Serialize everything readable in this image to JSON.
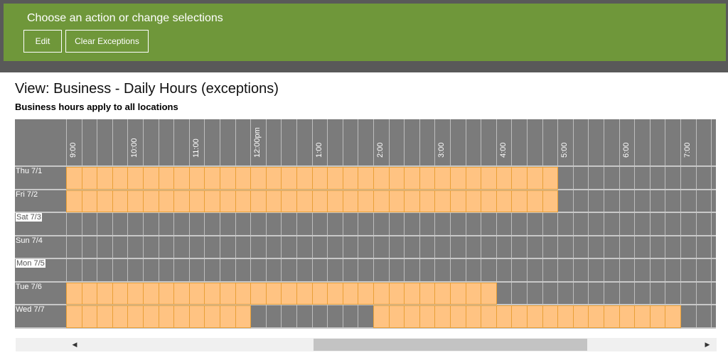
{
  "header": {
    "title": "Choose an action or change selections",
    "edit_label": "Edit",
    "clear_label": "Clear Exceptions"
  },
  "view": {
    "title": "View: Business - Daily Hours (exceptions)",
    "subtitle": "Business hours apply to all locations"
  },
  "schedule": {
    "time_labels": [
      "9:00",
      "10:00",
      "11:00",
      "12:00pm",
      "1:00",
      "2:00",
      "3:00",
      "4:00",
      "5:00",
      "6:00",
      "7:00"
    ],
    "slot_minutes": 15,
    "days": [
      {
        "label": "Thu 7/1",
        "highlight": false,
        "ranges": [
          [
            0,
            32
          ]
        ]
      },
      {
        "label": "Fri 7/2",
        "highlight": false,
        "ranges": [
          [
            0,
            32
          ]
        ]
      },
      {
        "label": "Sat 7/3",
        "highlight": true,
        "ranges": []
      },
      {
        "label": "Sun 7/4",
        "highlight": false,
        "ranges": []
      },
      {
        "label": "Mon 7/5",
        "highlight": true,
        "ranges": []
      },
      {
        "label": "Tue 7/6",
        "highlight": false,
        "ranges": [
          [
            0,
            28
          ]
        ]
      },
      {
        "label": "Wed 7/7",
        "highlight": false,
        "ranges": [
          [
            0,
            12
          ],
          [
            20,
            40
          ]
        ]
      }
    ],
    "colors": {
      "open": "#ffc382",
      "open_border": "#e9a038",
      "closed": "#7b7b7b",
      "gridline": "#bdbdbd"
    }
  },
  "scrollbar": {
    "left_icon": "scroll-left-arrow-icon",
    "right_icon": "scroll-right-arrow-icon"
  }
}
